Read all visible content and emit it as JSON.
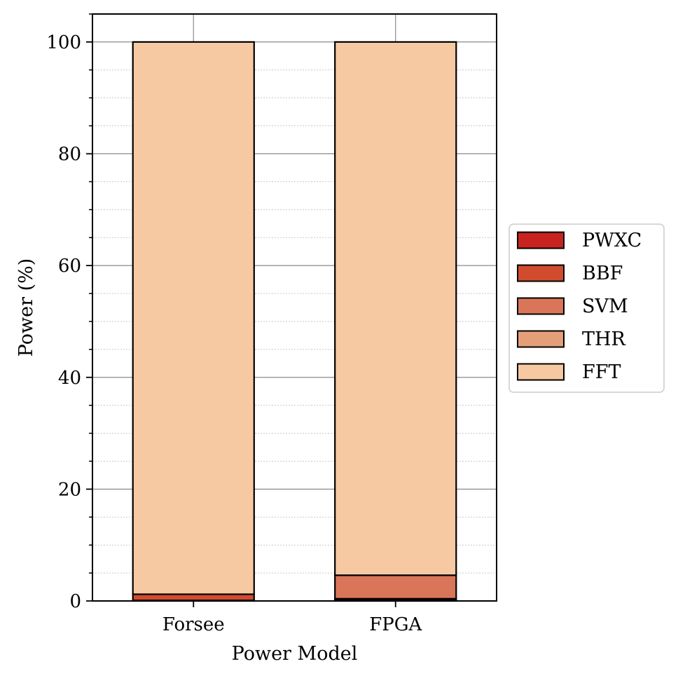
{
  "chart_data": {
    "type": "bar",
    "stacked": true,
    "title": "",
    "xlabel": "Power Model",
    "ylabel": "Power (%)",
    "categories": [
      "Forsee",
      "FPGA"
    ],
    "ylim": [
      0,
      105
    ],
    "yticks": [
      0,
      20,
      40,
      60,
      80,
      100
    ],
    "grid": "on",
    "legend_position": "right-center",
    "series": [
      {
        "name": "PWXC",
        "color": "#c8231e",
        "values": [
          0.1,
          0.1
        ]
      },
      {
        "name": "BBF",
        "color": "#d14b2f",
        "values": [
          1.1,
          0.3
        ]
      },
      {
        "name": "SVM",
        "color": "#d9765a",
        "values": [
          0.0,
          4.2
        ]
      },
      {
        "name": "THR",
        "color": "#e49f78",
        "values": [
          0.0,
          0.0
        ]
      },
      {
        "name": "FFT",
        "color": "#f7c9a2",
        "values": [
          98.8,
          95.4
        ]
      }
    ]
  }
}
